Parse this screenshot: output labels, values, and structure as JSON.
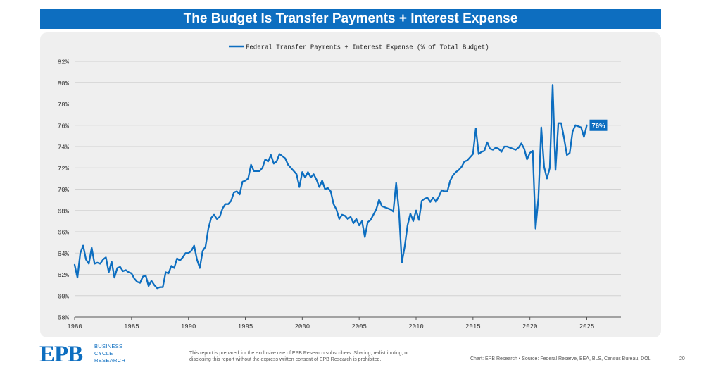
{
  "header": {
    "title": "The Budget Is Transfer Payments + Interest Expense"
  },
  "chart_data": {
    "type": "line",
    "title": "The Budget Is Transfer Payments + Interest Expense",
    "legend": "Federal Transfer Payments + Interest Expense (% of Total Budget)",
    "legend_position": "top-center",
    "xlim": [
      1980,
      2028
    ],
    "ylim": [
      58,
      82
    ],
    "x_ticks": [
      1980,
      1985,
      1990,
      1995,
      2000,
      2005,
      2010,
      2015,
      2020,
      2025
    ],
    "y_ticks": [
      58,
      60,
      62,
      64,
      66,
      68,
      70,
      72,
      74,
      76,
      78,
      80,
      82
    ],
    "y_tick_labels": [
      "58%",
      "60%",
      "62%",
      "64%",
      "66%",
      "68%",
      "70%",
      "72%",
      "74%",
      "76%",
      "78%",
      "80%",
      "82%"
    ],
    "grid": true,
    "end_label": "76%",
    "color": "#0d6ec0",
    "series": [
      {
        "name": "Federal Transfer Payments + Interest Expense (% of Total Budget)",
        "points": [
          [
            1980.0,
            62.9
          ],
          [
            1980.25,
            61.7
          ],
          [
            1980.5,
            64.0
          ],
          [
            1980.75,
            64.7
          ],
          [
            1981.0,
            63.4
          ],
          [
            1981.25,
            63.0
          ],
          [
            1981.5,
            64.5
          ],
          [
            1981.75,
            63.0
          ],
          [
            1982.0,
            63.1
          ],
          [
            1982.25,
            63.0
          ],
          [
            1982.5,
            63.4
          ],
          [
            1982.75,
            63.6
          ],
          [
            1983.0,
            62.2
          ],
          [
            1983.25,
            63.2
          ],
          [
            1983.5,
            61.7
          ],
          [
            1983.75,
            62.6
          ],
          [
            1984.0,
            62.7
          ],
          [
            1984.25,
            62.3
          ],
          [
            1984.5,
            62.4
          ],
          [
            1984.75,
            62.2
          ],
          [
            1985.0,
            62.1
          ],
          [
            1985.25,
            61.6
          ],
          [
            1985.5,
            61.3
          ],
          [
            1985.75,
            61.2
          ],
          [
            1986.0,
            61.8
          ],
          [
            1986.25,
            61.9
          ],
          [
            1986.5,
            60.9
          ],
          [
            1986.75,
            61.4
          ],
          [
            1987.0,
            61.0
          ],
          [
            1987.25,
            60.7
          ],
          [
            1987.5,
            60.8
          ],
          [
            1987.75,
            60.8
          ],
          [
            1988.0,
            62.2
          ],
          [
            1988.25,
            62.1
          ],
          [
            1988.5,
            62.8
          ],
          [
            1988.75,
            62.6
          ],
          [
            1989.0,
            63.5
          ],
          [
            1989.25,
            63.3
          ],
          [
            1989.5,
            63.6
          ],
          [
            1989.75,
            64.0
          ],
          [
            1990.0,
            64.0
          ],
          [
            1990.25,
            64.2
          ],
          [
            1990.5,
            64.7
          ],
          [
            1990.75,
            63.4
          ],
          [
            1991.0,
            62.6
          ],
          [
            1991.25,
            64.2
          ],
          [
            1991.5,
            64.6
          ],
          [
            1991.75,
            66.3
          ],
          [
            1992.0,
            67.3
          ],
          [
            1992.25,
            67.6
          ],
          [
            1992.5,
            67.2
          ],
          [
            1992.75,
            67.4
          ],
          [
            1993.0,
            68.2
          ],
          [
            1993.25,
            68.6
          ],
          [
            1993.5,
            68.6
          ],
          [
            1993.75,
            68.9
          ],
          [
            1994.0,
            69.7
          ],
          [
            1994.25,
            69.8
          ],
          [
            1994.5,
            69.5
          ],
          [
            1994.75,
            70.7
          ],
          [
            1995.0,
            70.8
          ],
          [
            1995.25,
            71.0
          ],
          [
            1995.5,
            72.3
          ],
          [
            1995.75,
            71.7
          ],
          [
            1996.0,
            71.7
          ],
          [
            1996.25,
            71.7
          ],
          [
            1996.5,
            72.0
          ],
          [
            1996.75,
            72.8
          ],
          [
            1997.0,
            72.6
          ],
          [
            1997.25,
            73.2
          ],
          [
            1997.5,
            72.4
          ],
          [
            1997.75,
            72.6
          ],
          [
            1998.0,
            73.3
          ],
          [
            1998.25,
            73.1
          ],
          [
            1998.5,
            72.9
          ],
          [
            1998.75,
            72.3
          ],
          [
            1999.0,
            72.0
          ],
          [
            1999.25,
            71.7
          ],
          [
            1999.5,
            71.4
          ],
          [
            1999.75,
            70.2
          ],
          [
            2000.0,
            71.6
          ],
          [
            2000.25,
            71.1
          ],
          [
            2000.5,
            71.6
          ],
          [
            2000.75,
            71.1
          ],
          [
            2001.0,
            71.4
          ],
          [
            2001.25,
            70.9
          ],
          [
            2001.5,
            70.2
          ],
          [
            2001.75,
            70.8
          ],
          [
            2002.0,
            70.0
          ],
          [
            2002.25,
            70.1
          ],
          [
            2002.5,
            69.8
          ],
          [
            2002.75,
            68.6
          ],
          [
            2003.0,
            68.1
          ],
          [
            2003.25,
            67.2
          ],
          [
            2003.5,
            67.6
          ],
          [
            2003.75,
            67.5
          ],
          [
            2004.0,
            67.2
          ],
          [
            2004.25,
            67.4
          ],
          [
            2004.5,
            66.8
          ],
          [
            2004.75,
            67.2
          ],
          [
            2005.0,
            66.6
          ],
          [
            2005.25,
            67.0
          ],
          [
            2005.5,
            65.5
          ],
          [
            2005.75,
            66.9
          ],
          [
            2006.0,
            67.1
          ],
          [
            2006.25,
            67.6
          ],
          [
            2006.5,
            68.1
          ],
          [
            2006.75,
            69.0
          ],
          [
            2007.0,
            68.4
          ],
          [
            2007.25,
            68.3
          ],
          [
            2007.5,
            68.2
          ],
          [
            2007.75,
            68.1
          ],
          [
            2008.0,
            67.9
          ],
          [
            2008.25,
            70.6
          ],
          [
            2008.5,
            67.9
          ],
          [
            2008.75,
            63.1
          ],
          [
            2009.0,
            64.6
          ],
          [
            2009.25,
            66.6
          ],
          [
            2009.5,
            67.7
          ],
          [
            2009.75,
            67.0
          ],
          [
            2010.0,
            68.0
          ],
          [
            2010.25,
            67.1
          ],
          [
            2010.5,
            68.9
          ],
          [
            2010.75,
            69.1
          ],
          [
            2011.0,
            69.2
          ],
          [
            2011.25,
            68.8
          ],
          [
            2011.5,
            69.2
          ],
          [
            2011.75,
            68.8
          ],
          [
            2012.0,
            69.3
          ],
          [
            2012.25,
            69.9
          ],
          [
            2012.5,
            69.8
          ],
          [
            2012.75,
            69.8
          ],
          [
            2013.0,
            70.8
          ],
          [
            2013.25,
            71.3
          ],
          [
            2013.5,
            71.6
          ],
          [
            2013.75,
            71.8
          ],
          [
            2014.0,
            72.1
          ],
          [
            2014.25,
            72.6
          ],
          [
            2014.5,
            72.7
          ],
          [
            2014.75,
            73.0
          ],
          [
            2015.0,
            73.3
          ],
          [
            2015.25,
            75.7
          ],
          [
            2015.5,
            73.3
          ],
          [
            2015.75,
            73.5
          ],
          [
            2016.0,
            73.6
          ],
          [
            2016.25,
            74.4
          ],
          [
            2016.5,
            73.8
          ],
          [
            2016.75,
            73.7
          ],
          [
            2017.0,
            73.9
          ],
          [
            2017.25,
            73.8
          ],
          [
            2017.5,
            73.5
          ],
          [
            2017.75,
            74.0
          ],
          [
            2018.0,
            74.0
          ],
          [
            2018.25,
            73.9
          ],
          [
            2018.5,
            73.8
          ],
          [
            2018.75,
            73.7
          ],
          [
            2019.0,
            73.9
          ],
          [
            2019.25,
            74.3
          ],
          [
            2019.5,
            73.8
          ],
          [
            2019.75,
            72.8
          ],
          [
            2020.0,
            73.4
          ],
          [
            2020.25,
            73.6
          ],
          [
            2020.5,
            66.3
          ],
          [
            2020.75,
            69.2
          ],
          [
            2021.0,
            75.8
          ],
          [
            2021.25,
            72.1
          ],
          [
            2021.5,
            71.0
          ],
          [
            2021.75,
            72.0
          ],
          [
            2022.0,
            79.8
          ],
          [
            2022.25,
            71.8
          ],
          [
            2022.5,
            76.2
          ],
          [
            2022.75,
            76.2
          ],
          [
            2023.0,
            74.8
          ],
          [
            2023.25,
            73.2
          ],
          [
            2023.5,
            73.4
          ],
          [
            2023.75,
            75.4
          ],
          [
            2024.0,
            76.0
          ],
          [
            2024.25,
            75.9
          ],
          [
            2024.5,
            75.8
          ],
          [
            2024.75,
            74.9
          ],
          [
            2025.0,
            76.0
          ]
        ]
      }
    ]
  },
  "footer": {
    "logo_text": "EPB",
    "logo_sub": [
      "BUSINESS",
      "CYCLE",
      "RESEARCH"
    ],
    "disclaimer_line1": "This report is prepared for the exclusive use of EPB Research subscribers. Sharing, redistributing, or",
    "disclaimer_line2": "disclosing this report without the express written consent of EPB Research is prohibited.",
    "source": "Chart: EPB Research  •  Source: Federal Reserve, BEA, BLS, Census Bureau, DOL",
    "page_number": "20"
  }
}
